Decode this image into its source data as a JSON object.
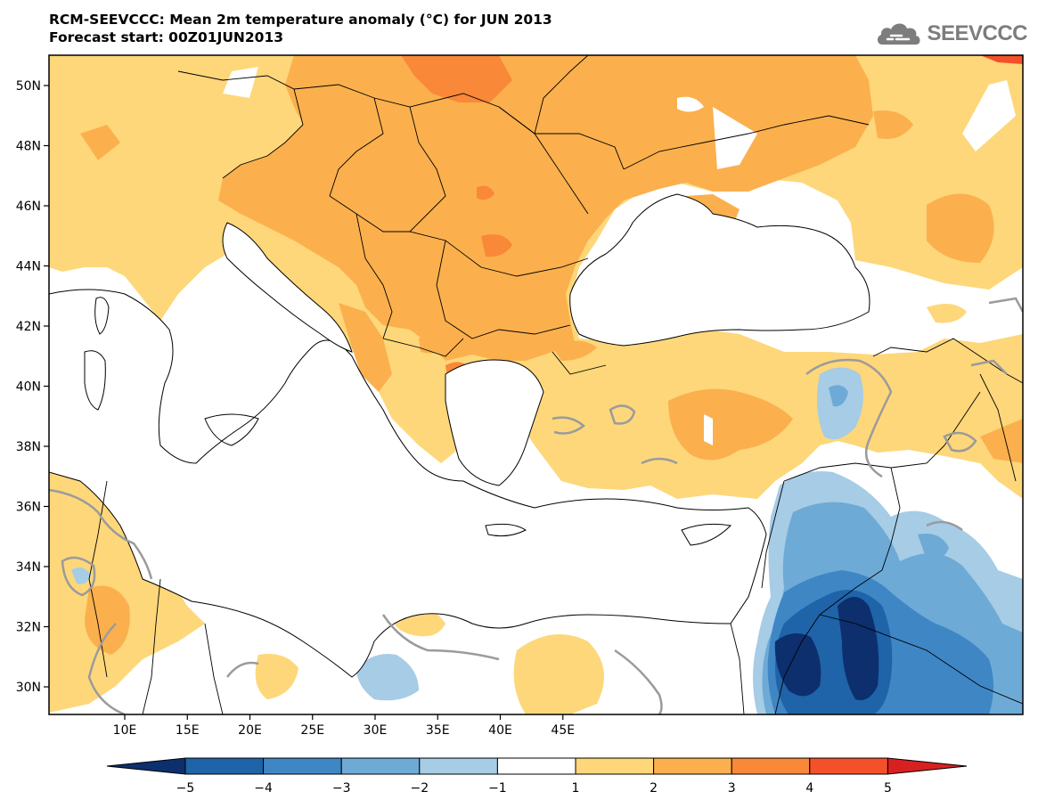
{
  "header": {
    "title": "RCM-SEEVCCC: Mean 2m temperature anomaly (°C) for JUN 2013",
    "subtitle": "Forecast start: 00Z01JUN2013"
  },
  "logo": {
    "text": "SEEVCCC",
    "icon": "cloud-logo-icon"
  },
  "map": {
    "lat_labels": [
      "50N",
      "48N",
      "46N",
      "44N",
      "42N",
      "40N",
      "38N",
      "36N",
      "34N",
      "32N",
      "30N"
    ],
    "lon_labels": [
      "10E",
      "15E",
      "20E",
      "25E",
      "30E",
      "35E",
      "40E",
      "45E"
    ]
  },
  "colorbar": {
    "labels": [
      "−5",
      "−4",
      "−3",
      "−2",
      "−1",
      "1",
      "2",
      "3",
      "4",
      "5"
    ],
    "colors": [
      "#0d2f6e",
      "#1f63a8",
      "#3f86c5",
      "#6eaad6",
      "#a6cce6",
      "#ffffff",
      "#fdd77a",
      "#fbb04d",
      "#f98839",
      "#f4512b",
      "#d92021"
    ]
  }
}
